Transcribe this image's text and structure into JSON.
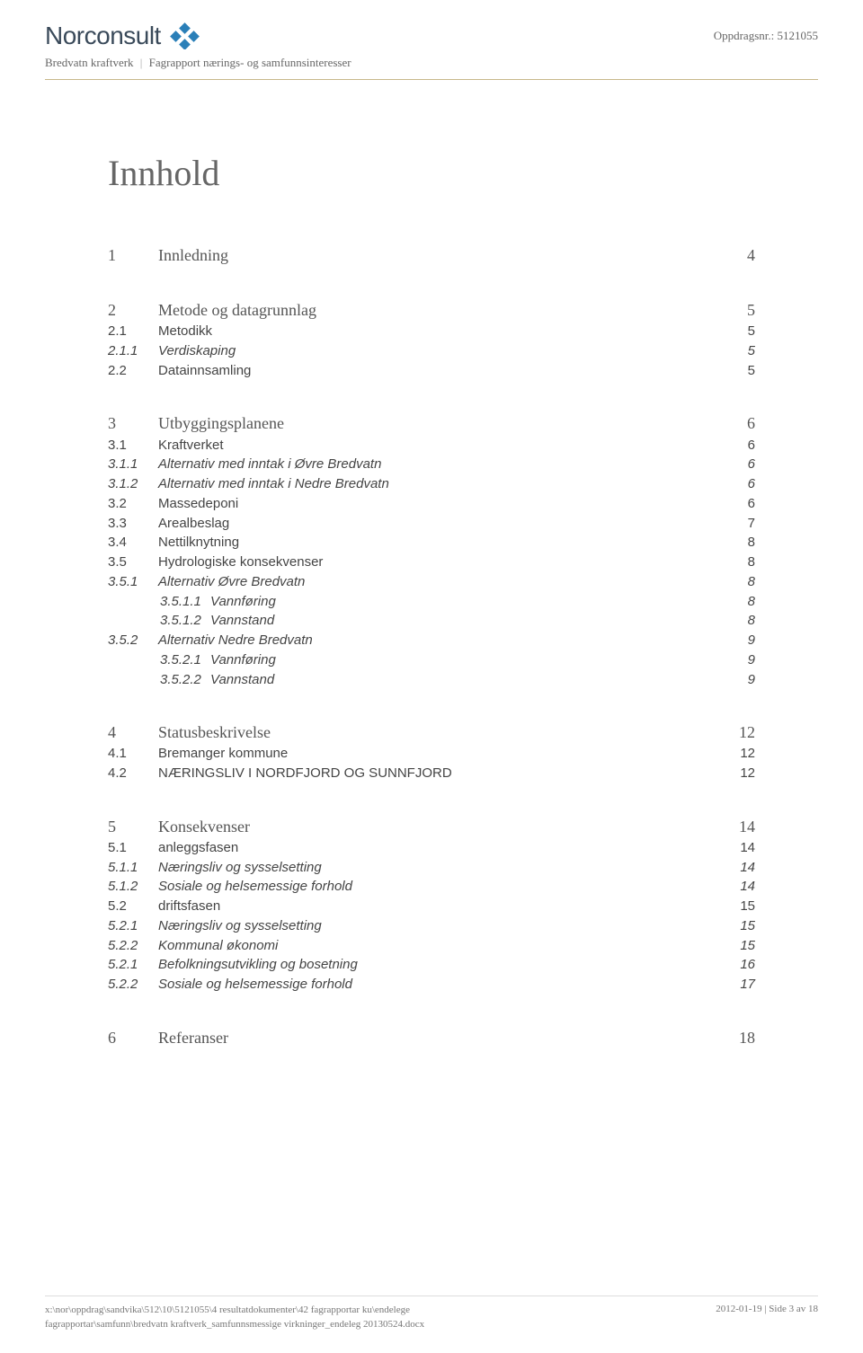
{
  "header": {
    "company": "Norconsult",
    "oppdrag_label": "Oppdragsnr.:",
    "oppdrag_nr": "5121055",
    "subtitle_a": "Bredvatn kraftverk",
    "subtitle_b": "Fagrapport nærings- og samfunnsinteresser"
  },
  "logo_colors": {
    "diamond": "#2a7fb8"
  },
  "title": "Innhold",
  "toc": [
    {
      "section": [
        {
          "lvl": 1,
          "num": "1",
          "text": "Innledning",
          "page": "4"
        }
      ]
    },
    {
      "section": [
        {
          "lvl": 1,
          "num": "2",
          "text": "Metode og datagrunnlag",
          "page": "5"
        },
        {
          "lvl": 2,
          "num": "2.1",
          "text": "Metodikk",
          "page": "5"
        },
        {
          "lvl": 3,
          "num": "2.1.1",
          "text": "Verdiskaping",
          "page": "5"
        },
        {
          "lvl": 2,
          "num": "2.2",
          "text": "Datainnsamling",
          "page": "5"
        }
      ]
    },
    {
      "section": [
        {
          "lvl": 1,
          "num": "3",
          "text": "Utbyggingsplanene",
          "page": "6"
        },
        {
          "lvl": 2,
          "num": "3.1",
          "text": "Kraftverket",
          "page": "6"
        },
        {
          "lvl": 3,
          "num": "3.1.1",
          "text": "Alternativ med inntak i Øvre Bredvatn",
          "page": "6"
        },
        {
          "lvl": 3,
          "num": "3.1.2",
          "text": "Alternativ med inntak i Nedre Bredvatn",
          "page": "6"
        },
        {
          "lvl": 2,
          "num": "3.2",
          "text": "Massedeponi",
          "page": "6"
        },
        {
          "lvl": 2,
          "num": "3.3",
          "text": "Arealbeslag",
          "page": "7"
        },
        {
          "lvl": 2,
          "num": "3.4",
          "text": "Nettilknytning",
          "page": "8"
        },
        {
          "lvl": 2,
          "num": "3.5",
          "text": "Hydrologiske konsekvenser",
          "page": "8"
        },
        {
          "lvl": 3,
          "num": "3.5.1",
          "text": "Alternativ Øvre Bredvatn",
          "page": "8"
        },
        {
          "lvl": 4,
          "num": "3.5.1.1",
          "text": "Vannføring",
          "page": "8",
          "indent": 2
        },
        {
          "lvl": 4,
          "num": "3.5.1.2",
          "text": "Vannstand",
          "page": "8",
          "indent": 2
        },
        {
          "lvl": 3,
          "num": "3.5.2",
          "text": "Alternativ Nedre Bredvatn",
          "page": "9"
        },
        {
          "lvl": 4,
          "num": "3.5.2.1",
          "text": "Vannføring",
          "page": "9",
          "indent": 2
        },
        {
          "lvl": 4,
          "num": "3.5.2.2",
          "text": "Vannstand",
          "page": "9",
          "indent": 2
        }
      ]
    },
    {
      "section": [
        {
          "lvl": 1,
          "num": "4",
          "text": "Statusbeskrivelse",
          "page": "12"
        },
        {
          "lvl": 2,
          "num": "4.1",
          "text": "Bremanger kommune",
          "page": "12"
        },
        {
          "lvl": 2,
          "num": "4.2",
          "text": "NÆRINGSLIV I NORDFJORD OG SUNNFJORD",
          "page": "12"
        }
      ]
    },
    {
      "section": [
        {
          "lvl": 1,
          "num": "5",
          "text": "Konsekvenser",
          "page": "14"
        },
        {
          "lvl": 2,
          "num": "5.1",
          "text": "anleggsfasen",
          "page": "14"
        },
        {
          "lvl": 3,
          "num": "5.1.1",
          "text": "Næringsliv og sysselsetting",
          "page": "14"
        },
        {
          "lvl": 3,
          "num": "5.1.2",
          "text": "Sosiale og helsemessige forhold",
          "page": "14"
        },
        {
          "lvl": 2,
          "num": "5.2",
          "text": "driftsfasen",
          "page": "15"
        },
        {
          "lvl": 3,
          "num": "5.2.1",
          "text": "Næringsliv og sysselsetting",
          "page": "15"
        },
        {
          "lvl": 3,
          "num": "5.2.2",
          "text": "Kommunal økonomi",
          "page": "15"
        },
        {
          "lvl": 3,
          "num": "5.2.1",
          "text": "Befolkningsutvikling og bosetning",
          "page": "16"
        },
        {
          "lvl": 3,
          "num": "5.2.2",
          "text": "Sosiale og helsemessige forhold",
          "page": "17"
        }
      ]
    },
    {
      "section": [
        {
          "lvl": 1,
          "num": "6",
          "text": "Referanser",
          "page": "18"
        }
      ]
    }
  ],
  "footer": {
    "path1": "x:\\nor\\oppdrag\\sandvika\\512\\10\\5121055\\4 resultatdokumenter\\42 fagrapportar ku\\endelege",
    "path2": "fagrapportar\\samfunn\\bredvatn kraftverk_samfunnsmessige virkninger_endeleg 20130524.docx",
    "date": "2012-01-19",
    "pageinfo": "Side 3 av 18"
  }
}
